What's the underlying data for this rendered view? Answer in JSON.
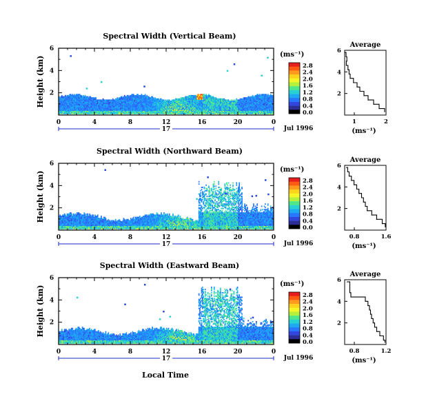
{
  "shared": {
    "xlabel": "Local Time",
    "ylabel": "Height (km)",
    "date_label": "Jul 1996",
    "day_label": "17",
    "x_ticks": [
      "0",
      "4",
      "8",
      "12",
      "16",
      "20",
      "0"
    ],
    "y_ticks": [
      "6",
      "4",
      "2"
    ],
    "colorbar_unit": "(ms⁻¹)",
    "colorbar_ticks": [
      "2.8",
      "2.4",
      "2.0",
      "1.6",
      "1.2",
      "0.8",
      "0.4",
      "0.0"
    ],
    "colorbar_colors": [
      "#e61e1e",
      "#ff5a14",
      "#ff9a1e",
      "#ffd21e",
      "#f5f528",
      "#b4f03c",
      "#50e68c",
      "#28d2d2",
      "#1eaaf0",
      "#2878ff",
      "#3246dc",
      "#2d2d96",
      "#000000"
    ],
    "profile_title": "Average",
    "profile_xlabel": "(ms⁻¹)",
    "profile_yticks": [
      "6",
      "4",
      "2"
    ]
  },
  "chart_data": [
    {
      "type": "heatmap",
      "title": "Spectral Width (Vertical Beam)",
      "x_range": [
        0,
        24
      ],
      "y_range": [
        0,
        6
      ],
      "z_range": [
        0,
        2.8
      ],
      "profile": {
        "x_ticks": [
          "1",
          "2"
        ],
        "x_range": [
          0.5,
          2.0
        ],
        "points": [
          [
            0.52,
            5.8
          ],
          [
            0.55,
            5.4
          ],
          [
            0.58,
            5.0
          ],
          [
            0.56,
            4.6
          ],
          [
            0.62,
            4.2
          ],
          [
            0.66,
            3.8
          ],
          [
            0.7,
            3.4
          ],
          [
            0.82,
            3.0
          ],
          [
            0.95,
            2.6
          ],
          [
            1.05,
            2.2
          ],
          [
            1.2,
            1.8
          ],
          [
            1.35,
            1.4
          ],
          [
            1.55,
            1.0
          ],
          [
            1.75,
            0.6
          ],
          [
            1.95,
            0.3
          ]
        ]
      }
    },
    {
      "type": "heatmap",
      "title": "Spectral Width (Northward Beam)",
      "x_range": [
        0,
        24
      ],
      "y_range": [
        0,
        6
      ],
      "z_range": [
        0,
        2.8
      ],
      "profile": {
        "x_ticks": [
          "0.8",
          "1.6"
        ],
        "x_range": [
          0.5,
          1.6
        ],
        "points": [
          [
            0.55,
            5.8
          ],
          [
            0.58,
            5.4
          ],
          [
            0.62,
            5.0
          ],
          [
            0.68,
            4.6
          ],
          [
            0.75,
            4.2
          ],
          [
            0.82,
            3.8
          ],
          [
            0.88,
            3.4
          ],
          [
            0.95,
            3.0
          ],
          [
            1.0,
            2.6
          ],
          [
            1.05,
            2.2
          ],
          [
            1.1,
            1.8
          ],
          [
            1.22,
            1.4
          ],
          [
            1.35,
            1.0
          ],
          [
            1.5,
            0.6
          ],
          [
            1.58,
            0.3
          ]
        ]
      }
    },
    {
      "type": "heatmap",
      "title": "Spectral Width (Eastward Beam)",
      "x_range": [
        0,
        24
      ],
      "y_range": [
        0,
        6
      ],
      "z_range": [
        0,
        2.8
      ],
      "profile": {
        "x_ticks": [
          "0.8",
          "1.2"
        ],
        "x_range": [
          0.5,
          1.3
        ],
        "points": [
          [
            0.55,
            5.8
          ],
          [
            0.6,
            5.3
          ],
          [
            0.6,
            4.8
          ],
          [
            0.62,
            4.4
          ],
          [
            0.9,
            4.0
          ],
          [
            0.95,
            3.6
          ],
          [
            0.98,
            3.2
          ],
          [
            1.0,
            2.8
          ],
          [
            1.02,
            2.4
          ],
          [
            1.05,
            2.0
          ],
          [
            1.08,
            1.6
          ],
          [
            1.12,
            1.2
          ],
          [
            1.18,
            0.8
          ],
          [
            1.25,
            0.4
          ],
          [
            1.28,
            0.2
          ]
        ]
      }
    }
  ]
}
